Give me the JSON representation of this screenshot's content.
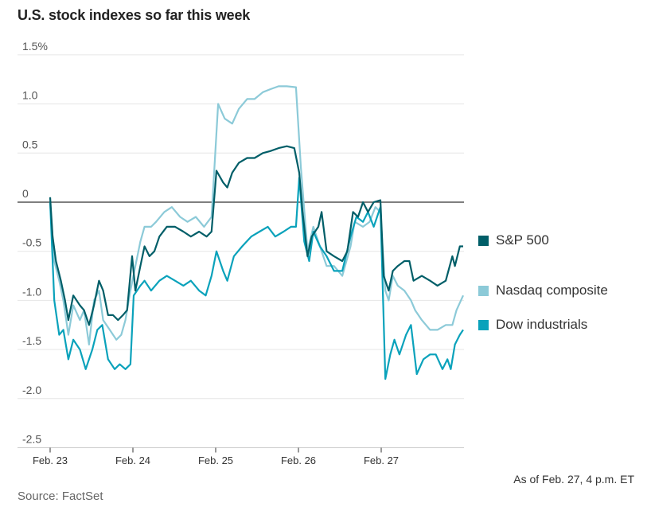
{
  "chart_data": {
    "type": "line",
    "title": "U.S. stock indexes so far this week",
    "ylim": [
      -2.5,
      1.5
    ],
    "xlim": [
      0,
      5
    ],
    "y_ticks": [
      "1.5%",
      "1.0",
      "0.5",
      "0",
      "-0.5",
      "-1.0",
      "-1.5",
      "-2.0",
      "-2.5"
    ],
    "y_tick_values": [
      1.5,
      1.0,
      0.5,
      0,
      -0.5,
      -1.0,
      -1.5,
      -2.0,
      -2.5
    ],
    "x_ticks": [
      "Feb. 23",
      "Feb. 24",
      "Feb. 25",
      "Feb. 26",
      "Feb. 27"
    ],
    "x_tick_values": [
      0,
      1,
      2,
      3,
      4
    ],
    "grid": true,
    "legend": "right",
    "note": "As of Feb. 27, 4 p.m. ET",
    "source": "Source: FactSet",
    "series": [
      {
        "name": "S&P 500",
        "color": "#005e68",
        "points": [
          [
            0,
            0.05
          ],
          [
            0.03,
            -0.35
          ],
          [
            0.07,
            -0.6
          ],
          [
            0.13,
            -0.8
          ],
          [
            0.18,
            -1.0
          ],
          [
            0.22,
            -1.2
          ],
          [
            0.28,
            -0.95
          ],
          [
            0.36,
            -1.05
          ],
          [
            0.41,
            -1.1
          ],
          [
            0.47,
            -1.25
          ],
          [
            0.53,
            -1.05
          ],
          [
            0.59,
            -0.8
          ],
          [
            0.64,
            -0.9
          ],
          [
            0.7,
            -1.15
          ],
          [
            0.76,
            -1.15
          ],
          [
            0.82,
            -1.2
          ],
          [
            0.88,
            -1.15
          ],
          [
            0.93,
            -1.1
          ],
          [
            0.99,
            -0.55
          ],
          [
            1.03,
            -0.9
          ],
          [
            1.09,
            -0.65
          ],
          [
            1.14,
            -0.45
          ],
          [
            1.2,
            -0.55
          ],
          [
            1.26,
            -0.5
          ],
          [
            1.32,
            -0.35
          ],
          [
            1.41,
            -0.25
          ],
          [
            1.51,
            -0.25
          ],
          [
            1.61,
            -0.3
          ],
          [
            1.7,
            -0.35
          ],
          [
            1.8,
            -0.3
          ],
          [
            1.89,
            -0.35
          ],
          [
            1.95,
            -0.3
          ],
          [
            2.01,
            0.32
          ],
          [
            2.09,
            0.2
          ],
          [
            2.14,
            0.15
          ],
          [
            2.2,
            0.3
          ],
          [
            2.28,
            0.4
          ],
          [
            2.38,
            0.45
          ],
          [
            2.47,
            0.45
          ],
          [
            2.57,
            0.5
          ],
          [
            2.66,
            0.52
          ],
          [
            2.76,
            0.55
          ],
          [
            2.86,
            0.57
          ],
          [
            2.95,
            0.55
          ],
          [
            3.01,
            0.3
          ],
          [
            3.05,
            -0.1
          ],
          [
            3.11,
            -0.55
          ],
          [
            3.16,
            -0.35
          ],
          [
            3.24,
            -0.25
          ],
          [
            3.28,
            -0.1
          ],
          [
            3.34,
            -0.5
          ],
          [
            3.43,
            -0.55
          ],
          [
            3.53,
            -0.6
          ],
          [
            3.59,
            -0.5
          ],
          [
            3.66,
            -0.1
          ],
          [
            3.72,
            -0.15
          ],
          [
            3.78,
            0.0
          ],
          [
            3.84,
            -0.1
          ],
          [
            3.91,
            0.0
          ],
          [
            3.99,
            0.02
          ],
          [
            4.03,
            -0.75
          ],
          [
            4.09,
            -0.9
          ],
          [
            4.14,
            -0.7
          ],
          [
            4.2,
            -0.65
          ],
          [
            4.28,
            -0.6
          ],
          [
            4.34,
            -0.6
          ],
          [
            4.39,
            -0.8
          ],
          [
            4.49,
            -0.75
          ],
          [
            4.59,
            -0.8
          ],
          [
            4.68,
            -0.85
          ],
          [
            4.78,
            -0.8
          ],
          [
            4.86,
            -0.55
          ],
          [
            4.89,
            -0.65
          ],
          [
            4.95,
            -0.45
          ],
          [
            4.99,
            -0.45
          ]
        ]
      },
      {
        "name": "Nasdaq composite",
        "color": "#8ccad8",
        "points": [
          [
            0,
            0.0
          ],
          [
            0.05,
            -0.6
          ],
          [
            0.11,
            -0.8
          ],
          [
            0.16,
            -1.0
          ],
          [
            0.22,
            -1.35
          ],
          [
            0.28,
            -1.05
          ],
          [
            0.36,
            -1.2
          ],
          [
            0.41,
            -1.1
          ],
          [
            0.47,
            -1.45
          ],
          [
            0.53,
            -1.0
          ],
          [
            0.59,
            -0.9
          ],
          [
            0.64,
            -1.2
          ],
          [
            0.72,
            -1.3
          ],
          [
            0.8,
            -1.4
          ],
          [
            0.86,
            -1.35
          ],
          [
            0.91,
            -1.2
          ],
          [
            0.97,
            -0.9
          ],
          [
            1.03,
            -0.65
          ],
          [
            1.09,
            -0.4
          ],
          [
            1.14,
            -0.25
          ],
          [
            1.22,
            -0.25
          ],
          [
            1.28,
            -0.2
          ],
          [
            1.38,
            -0.1
          ],
          [
            1.47,
            -0.05
          ],
          [
            1.57,
            -0.15
          ],
          [
            1.66,
            -0.2
          ],
          [
            1.76,
            -0.15
          ],
          [
            1.86,
            -0.25
          ],
          [
            1.95,
            -0.15
          ],
          [
            2.03,
            1.0
          ],
          [
            2.11,
            0.85
          ],
          [
            2.2,
            0.8
          ],
          [
            2.28,
            0.95
          ],
          [
            2.38,
            1.05
          ],
          [
            2.47,
            1.05
          ],
          [
            2.57,
            1.12
          ],
          [
            2.66,
            1.15
          ],
          [
            2.76,
            1.18
          ],
          [
            2.86,
            1.18
          ],
          [
            2.97,
            1.17
          ],
          [
            3.03,
            0.35
          ],
          [
            3.11,
            -0.5
          ],
          [
            3.18,
            -0.25
          ],
          [
            3.26,
            -0.45
          ],
          [
            3.34,
            -0.65
          ],
          [
            3.43,
            -0.65
          ],
          [
            3.53,
            -0.75
          ],
          [
            3.63,
            -0.45
          ],
          [
            3.68,
            -0.2
          ],
          [
            3.78,
            -0.25
          ],
          [
            3.86,
            -0.2
          ],
          [
            3.93,
            -0.05
          ],
          [
            3.99,
            -0.1
          ],
          [
            4.05,
            -0.9
          ],
          [
            4.09,
            -1.0
          ],
          [
            4.14,
            -0.75
          ],
          [
            4.2,
            -0.85
          ],
          [
            4.28,
            -0.9
          ],
          [
            4.36,
            -1.0
          ],
          [
            4.41,
            -1.1
          ],
          [
            4.49,
            -1.2
          ],
          [
            4.59,
            -1.3
          ],
          [
            4.68,
            -1.3
          ],
          [
            4.78,
            -1.25
          ],
          [
            4.86,
            -1.25
          ],
          [
            4.91,
            -1.1
          ],
          [
            4.99,
            -0.95
          ]
        ]
      },
      {
        "name": "Dow industrials",
        "color": "#0aa2bb",
        "points": [
          [
            0,
            0.0
          ],
          [
            0.05,
            -1.0
          ],
          [
            0.11,
            -1.35
          ],
          [
            0.16,
            -1.3
          ],
          [
            0.22,
            -1.6
          ],
          [
            0.28,
            -1.4
          ],
          [
            0.36,
            -1.5
          ],
          [
            0.43,
            -1.7
          ],
          [
            0.51,
            -1.5
          ],
          [
            0.57,
            -1.3
          ],
          [
            0.63,
            -1.25
          ],
          [
            0.7,
            -1.6
          ],
          [
            0.78,
            -1.7
          ],
          [
            0.84,
            -1.65
          ],
          [
            0.91,
            -1.7
          ],
          [
            0.97,
            -1.65
          ],
          [
            1.01,
            -0.95
          ],
          [
            1.09,
            -0.85
          ],
          [
            1.14,
            -0.8
          ],
          [
            1.22,
            -0.9
          ],
          [
            1.32,
            -0.8
          ],
          [
            1.41,
            -0.75
          ],
          [
            1.51,
            -0.8
          ],
          [
            1.61,
            -0.85
          ],
          [
            1.7,
            -0.8
          ],
          [
            1.8,
            -0.9
          ],
          [
            1.88,
            -0.95
          ],
          [
            1.95,
            -0.75
          ],
          [
            2.01,
            -0.5
          ],
          [
            2.09,
            -0.7
          ],
          [
            2.14,
            -0.8
          ],
          [
            2.22,
            -0.55
          ],
          [
            2.32,
            -0.45
          ],
          [
            2.43,
            -0.35
          ],
          [
            2.53,
            -0.3
          ],
          [
            2.63,
            -0.25
          ],
          [
            2.72,
            -0.35
          ],
          [
            2.82,
            -0.3
          ],
          [
            2.91,
            -0.25
          ],
          [
            2.97,
            -0.25
          ],
          [
            3.01,
            0.25
          ],
          [
            3.07,
            -0.4
          ],
          [
            3.13,
            -0.6
          ],
          [
            3.18,
            -0.3
          ],
          [
            3.26,
            -0.45
          ],
          [
            3.34,
            -0.55
          ],
          [
            3.43,
            -0.7
          ],
          [
            3.53,
            -0.7
          ],
          [
            3.63,
            -0.35
          ],
          [
            3.7,
            -0.15
          ],
          [
            3.78,
            -0.2
          ],
          [
            3.84,
            -0.1
          ],
          [
            3.91,
            -0.25
          ],
          [
            3.99,
            -0.05
          ],
          [
            4.05,
            -1.8
          ],
          [
            4.11,
            -1.55
          ],
          [
            4.16,
            -1.4
          ],
          [
            4.22,
            -1.55
          ],
          [
            4.3,
            -1.35
          ],
          [
            4.36,
            -1.25
          ],
          [
            4.43,
            -1.75
          ],
          [
            4.51,
            -1.6
          ],
          [
            4.59,
            -1.55
          ],
          [
            4.66,
            -1.55
          ],
          [
            4.74,
            -1.7
          ],
          [
            4.8,
            -1.6
          ],
          [
            4.84,
            -1.7
          ],
          [
            4.89,
            -1.45
          ],
          [
            4.95,
            -1.35
          ],
          [
            4.99,
            -1.3
          ]
        ]
      }
    ]
  }
}
